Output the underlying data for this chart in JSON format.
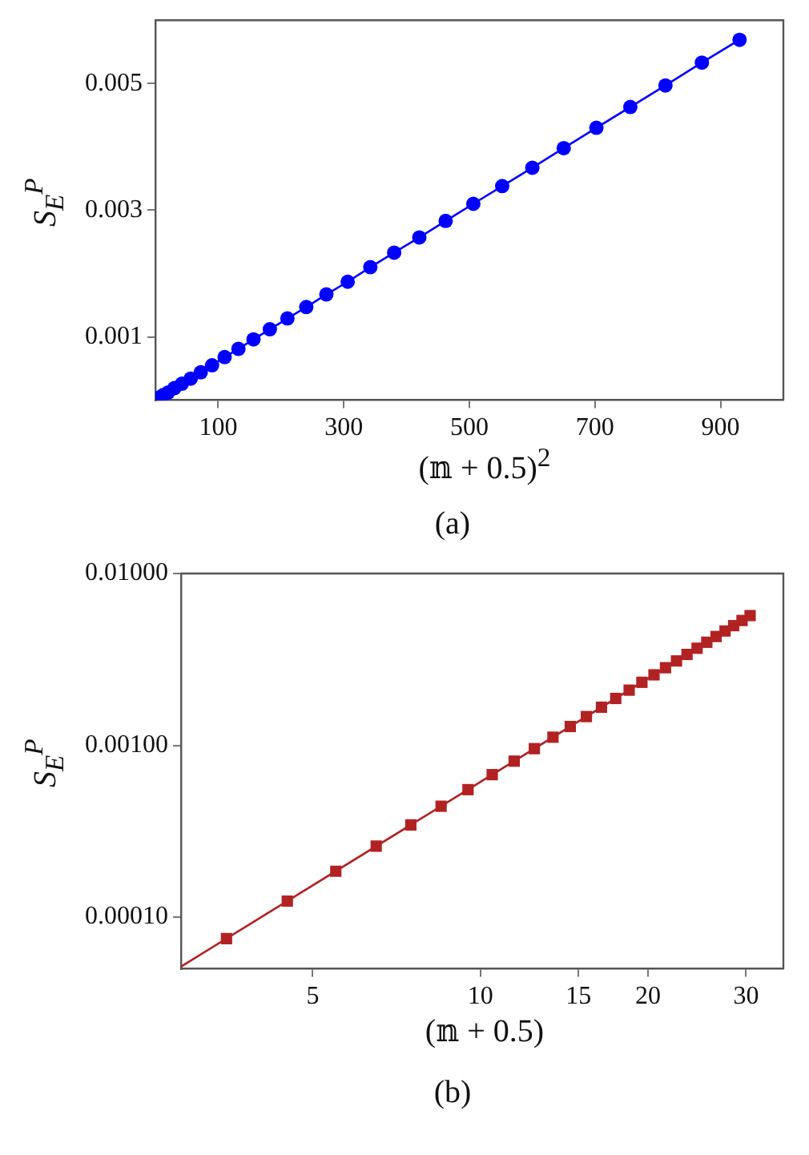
{
  "chart_data": [
    {
      "type": "line",
      "ylabel": "S$_{E}$$^{P}$",
      "xlabel": "(𝕟 + 0.5)$^{2}$",
      "xlim": [
        0,
        1000
      ],
      "xticks": [
        100,
        300,
        500,
        700,
        900
      ],
      "ylim": [
        0,
        0.006
      ],
      "yticks": [
        0.001,
        0.003,
        0.005
      ],
      "marker": "circle",
      "annotations": [
        "(a)"
      ],
      "series": [
        {
          "color": "#0000ff",
          "x": [
            0.25,
            2.25,
            6.25,
            12.25,
            20.25,
            30.25,
            42.25,
            56.25,
            72.25,
            90.25,
            110.25,
            132.25,
            156.25,
            182.25,
            210.25,
            240.25,
            272.25,
            306.25,
            342.25,
            380.25,
            420.25,
            462.25,
            506.25,
            552.25,
            600.25,
            650.25,
            702.25,
            756.25,
            812.25,
            870.25,
            930.25
          ],
          "values": [
            0,
            1e-05,
            4e-05,
            8e-05,
            0.00012,
            0.00019,
            0.00026,
            0.00034,
            0.00044,
            0.00055,
            0.00068,
            0.00081,
            0.00096,
            0.00112,
            0.00129,
            0.00147,
            0.00167,
            0.00187,
            0.0021,
            0.00233,
            0.00257,
            0.00283,
            0.0031,
            0.00338,
            0.00367,
            0.00398,
            0.0043,
            0.00463,
            0.00497,
            0.00533,
            0.00569
          ]
        }
      ]
    },
    {
      "type": "scatter",
      "ylabel": "S$_{E}$$^{P}$",
      "xlabel": "(𝕟 + 0.5)",
      "log": "xy",
      "xlim": [
        2.9,
        35
      ],
      "xticks": [
        5,
        10,
        15,
        20,
        30
      ],
      "ylim": [
        5e-05,
        0.01
      ],
      "yticks": [
        {
          "value": 0.0001,
          "label": "0.00010"
        },
        {
          "value": 0.001,
          "label": "0.00100"
        },
        {
          "value": 0.01,
          "label": "0.01000"
        }
      ],
      "annotations": [
        "(b)"
      ],
      "series": [
        {
          "color": "#b22222",
          "marker": "square",
          "x": [
            3.5,
            4.5,
            5.5,
            6.5,
            7.5,
            8.5,
            9.5,
            10.5,
            11.5,
            12.5,
            13.5,
            14.5,
            15.5,
            16.5,
            17.5,
            18.5,
            19.5,
            20.5,
            21.5,
            22.5,
            23.5,
            24.5,
            25.5,
            26.5,
            27.5,
            28.5,
            29.5,
            30.5
          ],
          "values": [
            7.5e-05,
            0.000124,
            0.000185,
            0.000259,
            0.000344,
            0.000442,
            0.000552,
            0.000675,
            0.000809,
            0.000956,
            0.001115,
            0.001287,
            0.00147,
            0.001666,
            0.001874,
            0.002095,
            0.002327,
            0.002572,
            0.002829,
            0.003098,
            0.00338,
            0.003674,
            0.00398,
            0.004298,
            0.004628,
            0.004971,
            0.005326,
            0.005693
          ]
        },
        {
          "type": "line",
          "color": "#b22222",
          "marker": "none",
          "x": [
            2.9,
            30.5
          ],
          "values": [
            5.15e-05,
            0.005693
          ]
        }
      ]
    }
  ]
}
